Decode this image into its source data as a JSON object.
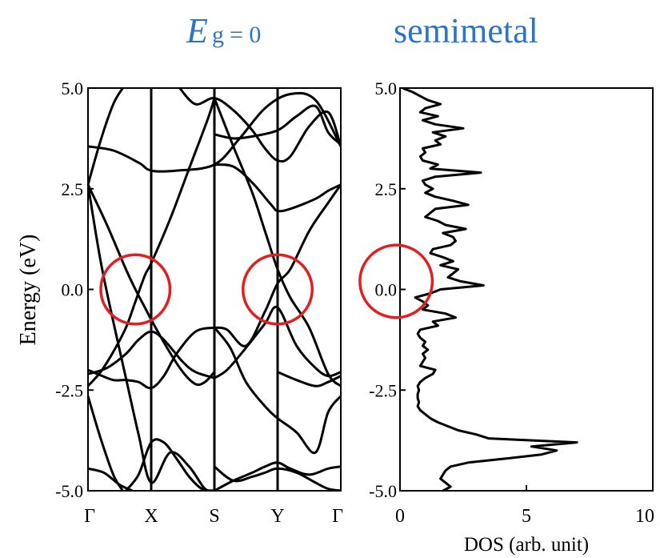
{
  "header": {
    "symbol_main": "E",
    "symbol_sub": "g",
    "symbol_eq": "= 0",
    "subtitle": "semimetal"
  },
  "colors": {
    "title": "#2e74c6",
    "curve": "#000000",
    "highlight_circle": "#e02020",
    "axis": "#000000"
  },
  "chart_data": [
    {
      "type": "line",
      "subtype": "band-structure",
      "ylabel": "Energy (eV)",
      "ylim": [
        -5.0,
        5.0
      ],
      "y_ticks": [
        "5.0",
        "2.5",
        "0.0",
        "-2.5",
        "-5.0"
      ],
      "y_tick_values": [
        5.0,
        2.5,
        0.0,
        -2.5,
        -5.0
      ],
      "x_ticks": [
        "Γ",
        "X",
        "S",
        "Y",
        "Γ"
      ],
      "x_tick_positions": [
        0,
        1,
        2,
        3,
        4
      ],
      "xlim": [
        0,
        4
      ],
      "vertical_lines_at": [
        1,
        2,
        3
      ],
      "highlight_circles": [
        {
          "x": 0.75,
          "y": 0.0,
          "r": 0.86
        },
        {
          "x": 3.0,
          "y": 0.0,
          "r": 0.86
        }
      ],
      "series": [
        {
          "x": [
            0,
            0.2,
            0.4,
            0.55
          ],
          "y": [
            2.6,
            3.7,
            4.6,
            5.0
          ]
        },
        {
          "x": [
            0,
            0.4,
            0.8,
            1.0,
            1.4,
            2.0,
            2.4,
            2.8,
            3.2,
            3.6,
            4.0
          ],
          "y": [
            3.55,
            3.45,
            3.15,
            2.95,
            2.95,
            3.1,
            3.75,
            4.5,
            4.85,
            4.7,
            3.55
          ]
        },
        {
          "x": [
            0,
            0.3,
            0.6,
            0.75,
            0.9,
            1.0,
            1.25,
            1.5,
            1.7,
            1.85,
            2.0
          ],
          "y": [
            2.6,
            1.6,
            0.5,
            0.0,
            -0.45,
            -0.75,
            -1.45,
            -2.05,
            -2.35,
            -2.3,
            -2.05
          ]
        },
        {
          "x": [
            0,
            0.2,
            0.4,
            0.6,
            0.8,
            1.0,
            1.3,
            1.6,
            1.85,
            2.0
          ],
          "y": [
            2.6,
            0.7,
            -0.8,
            -2.2,
            -3.6,
            -4.8,
            -4.05,
            -4.4,
            -4.95,
            -5.0
          ]
        },
        {
          "x": [
            0,
            0.2,
            0.4,
            0.6,
            0.75,
            0.9,
            1.0,
            1.3,
            1.6,
            1.9,
            2.0
          ],
          "y": [
            -2.4,
            -2.05,
            -1.55,
            -0.95,
            -0.3,
            0.35,
            0.65,
            1.75,
            3.0,
            4.25,
            4.75
          ]
        },
        {
          "x": [
            0,
            0.3,
            0.6,
            0.8,
            1.0,
            1.2,
            1.5,
            1.7,
            2.0
          ],
          "y": [
            -2.1,
            -1.95,
            -1.6,
            -1.25,
            -1.05,
            -1.25,
            -1.8,
            -2.05,
            -2.2
          ]
        },
        {
          "x": [
            0,
            0.15,
            0.4,
            0.6,
            0.8,
            1.0,
            1.2,
            1.4,
            1.7,
            2.0
          ],
          "y": [
            -2.0,
            -2.1,
            -2.25,
            -2.25,
            -2.3,
            -2.45,
            -2.15,
            -1.6,
            -1.05,
            -0.95
          ]
        },
        {
          "x": [
            0,
            0.2,
            0.4,
            0.55
          ],
          "y": [
            -2.65,
            -3.7,
            -4.6,
            -5.0
          ]
        },
        {
          "x": [
            0,
            0.25,
            0.5,
            0.7
          ],
          "y": [
            -4.45,
            -4.55,
            -4.85,
            -5.0
          ]
        },
        {
          "x": [
            0.6,
            0.8,
            1.0,
            1.2,
            1.4,
            1.6,
            1.8,
            2.0
          ],
          "y": [
            -5.0,
            -4.6,
            -3.8,
            -3.8,
            -4.2,
            -4.65,
            -4.95,
            -5.0
          ]
        },
        {
          "x": [
            1.45,
            1.7,
            2.0,
            2.3,
            2.6,
            2.8,
            3.0,
            3.2,
            3.5,
            3.8,
            4.0
          ],
          "y": [
            5.0,
            4.6,
            4.75,
            4.45,
            3.95,
            3.5,
            3.2,
            3.3,
            4.05,
            4.4,
            3.55
          ]
        },
        {
          "x": [
            2.0,
            2.3,
            2.6,
            3.0,
            3.3,
            3.6,
            3.8,
            4.0
          ],
          "y": [
            3.85,
            3.75,
            3.8,
            3.95,
            4.3,
            4.55,
            3.9,
            3.6
          ]
        },
        {
          "x": [
            2.0,
            2.3,
            2.6,
            2.9,
            3.0,
            3.2,
            3.6,
            3.8,
            4.0
          ],
          "y": [
            3.1,
            3.05,
            2.65,
            2.1,
            1.95,
            2.0,
            2.25,
            2.45,
            2.6
          ]
        },
        {
          "x": [
            2.0,
            2.3,
            2.6,
            2.8,
            3.0,
            3.2,
            3.5,
            3.8,
            4.0
          ],
          "y": [
            4.75,
            3.55,
            2.4,
            1.45,
            0.5,
            -0.2,
            -0.95,
            -2.1,
            -2.4
          ]
        },
        {
          "x": [
            2.0,
            2.2,
            2.5,
            2.8,
            3.0,
            3.2,
            3.5,
            3.8,
            4.0
          ],
          "y": [
            -0.95,
            -1.0,
            -1.4,
            -0.55,
            0.15,
            0.5,
            1.45,
            2.15,
            2.6
          ]
        },
        {
          "x": [
            2.0,
            2.2,
            2.5,
            2.8,
            3.0,
            3.3,
            3.6,
            3.8,
            4.0
          ],
          "y": [
            -2.2,
            -2.0,
            -1.45,
            -0.85,
            -0.45,
            -1.4,
            -1.95,
            -2.15,
            -2.05
          ]
        },
        {
          "x": [
            2.0,
            2.25,
            2.5,
            2.8,
            3.0,
            3.3,
            3.6,
            3.8,
            4.0
          ],
          "y": [
            -0.95,
            -1.45,
            -2.3,
            -2.9,
            -3.2,
            -3.55,
            -4.05,
            -3.05,
            -2.65
          ]
        },
        {
          "x": [
            2.0,
            2.3,
            2.6,
            2.8,
            3.0,
            3.2,
            3.5,
            3.8,
            4.0
          ],
          "y": [
            -5.0,
            -4.75,
            -4.55,
            -4.4,
            -4.3,
            -4.45,
            -4.6,
            -4.45,
            -4.4
          ]
        },
        {
          "x": [
            2.0,
            2.3,
            2.6,
            2.8,
            3.0,
            3.3,
            3.6,
            3.8,
            4.0
          ],
          "y": [
            -4.4,
            -4.75,
            -4.65,
            -4.55,
            -4.45,
            -4.55,
            -4.8,
            -4.95,
            -5.0
          ]
        },
        {
          "x": [
            3.0,
            3.3,
            3.6,
            3.8,
            4.0
          ],
          "y": [
            -2.05,
            -2.25,
            -2.4,
            -2.3,
            -2.15
          ]
        }
      ]
    },
    {
      "type": "line",
      "subtype": "density-of-states",
      "xlabel": "DOS (arb. unit)",
      "xlim": [
        0,
        10
      ],
      "ylim": [
        -5.0,
        5.0
      ],
      "x_ticks": [
        "0",
        "5",
        "10"
      ],
      "x_tick_values": [
        0,
        5,
        10
      ],
      "y_ticks": [
        "5.0",
        "2.5",
        "0.0",
        "-2.5",
        "-5.0"
      ],
      "y_tick_values": [
        5.0,
        2.5,
        0.0,
        -2.5,
        -5.0
      ],
      "highlight_circles": [
        {
          "x": 0.1,
          "y": 0.2,
          "r": 0.9
        }
      ],
      "series": [
        {
          "dos": [
            0.1,
            0.5,
            0.8,
            1.1,
            1.6,
            1.0,
            0.8,
            1.5,
            0.9,
            1.4,
            2.5,
            1.3,
            1.8,
            1.4,
            1.6,
            0.9,
            1.0,
            0.8,
            0.9,
            1.5,
            1.2,
            3.2,
            1.4,
            0.9,
            1.0,
            1.3,
            1.0,
            1.4,
            2.1,
            2.7,
            1.4,
            1.2,
            1.0,
            1.5,
            1.8,
            2.6,
            1.7,
            2.1,
            2.2,
            2.0,
            1.3,
            1.2,
            1.7,
            2.1,
            1.6,
            2.3,
            2.1,
            1.9,
            2.4,
            3.3,
            1.6,
            1.2,
            0.6,
            0.9,
            1.1,
            0.9,
            1.8,
            2.2,
            1.3,
            1.5,
            0.8,
            0.7,
            0.8,
            1.0,
            0.9,
            1.1,
            0.9,
            1.0,
            0.9,
            0.8,
            1.4,
            1.3,
            1.0,
            0.8,
            0.7,
            0.75,
            0.7,
            0.7,
            0.75,
            0.7,
            0.8,
            1.0,
            1.2,
            1.5,
            1.9,
            2.3,
            3.0,
            3.5,
            7.0,
            5.2,
            6.2,
            5.6,
            4.2,
            2.7,
            2.0,
            1.8,
            1.7,
            1.6,
            1.8,
            2.0,
            1.7
          ],
          "energy": [
            5.0,
            4.9,
            4.8,
            4.7,
            4.6,
            4.5,
            4.4,
            4.3,
            4.2,
            4.1,
            4.0,
            3.9,
            3.8,
            3.7,
            3.6,
            3.5,
            3.4,
            3.3,
            3.2,
            3.1,
            3.0,
            2.9,
            2.8,
            2.7,
            2.6,
            2.5,
            2.4,
            2.3,
            2.2,
            2.1,
            2.0,
            1.9,
            1.8,
            1.7,
            1.6,
            1.5,
            1.4,
            1.3,
            1.2,
            1.1,
            1.0,
            0.9,
            0.8,
            0.7,
            0.6,
            0.5,
            0.4,
            0.3,
            0.2,
            0.1,
            0.0,
            -0.1,
            -0.2,
            -0.3,
            -0.4,
            -0.5,
            -0.6,
            -0.7,
            -0.8,
            -0.9,
            -1.0,
            -1.1,
            -1.2,
            -1.3,
            -1.4,
            -1.5,
            -1.6,
            -1.7,
            -1.8,
            -1.9,
            -2.0,
            -2.1,
            -2.2,
            -2.3,
            -2.4,
            -2.5,
            -2.6,
            -2.7,
            -2.8,
            -2.9,
            -3.0,
            -3.1,
            -3.2,
            -3.3,
            -3.4,
            -3.5,
            -3.6,
            -3.7,
            -3.8,
            -3.9,
            -4.0,
            -4.1,
            -4.2,
            -4.3,
            -4.4,
            -4.5,
            -4.6,
            -4.7,
            -4.8,
            -4.9,
            -5.0
          ]
        }
      ]
    }
  ]
}
